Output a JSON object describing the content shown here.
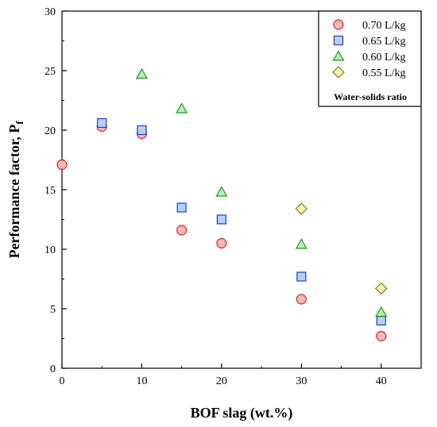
{
  "chart_data": {
    "type": "scatter",
    "xlabel": "BOF slag (wt.%)",
    "ylabel_main": "Performance factor, P",
    "ylabel_sub": "f",
    "xlim": [
      0,
      45
    ],
    "ylim": [
      0,
      30
    ],
    "xticks": [
      0,
      10,
      20,
      30,
      40
    ],
    "yticks": [
      0,
      5,
      10,
      15,
      20,
      25,
      30
    ],
    "grid": false,
    "legend_title": "Water-solids ratio",
    "legend_position": "top-right",
    "series": [
      {
        "name": "0.70 L/kg",
        "marker": "circle",
        "fill": "#f7b8b8",
        "stroke": "#e0202a",
        "x": [
          0,
          5,
          10,
          15,
          20,
          30,
          40
        ],
        "y": [
          17.1,
          20.3,
          19.7,
          11.6,
          10.5,
          5.8,
          2.7
        ]
      },
      {
        "name": "0.65 L/kg",
        "marker": "square",
        "fill": "#b8d0f7",
        "stroke": "#1a3fd0",
        "x": [
          5,
          10,
          15,
          20,
          30,
          40
        ],
        "y": [
          20.6,
          20.0,
          13.5,
          12.5,
          7.7,
          4.0
        ]
      },
      {
        "name": "0.60 L/kg",
        "marker": "triangle",
        "fill": "#b8f0b8",
        "stroke": "#1a9a1a",
        "x": [
          10,
          15,
          20,
          30,
          40
        ],
        "y": [
          24.7,
          21.8,
          14.8,
          10.4,
          4.7
        ]
      },
      {
        "name": "0.55 L/kg",
        "marker": "diamond",
        "fill": "#f0f0b0",
        "stroke": "#808010",
        "x": [
          30,
          40
        ],
        "y": [
          13.4,
          6.7
        ]
      }
    ]
  }
}
